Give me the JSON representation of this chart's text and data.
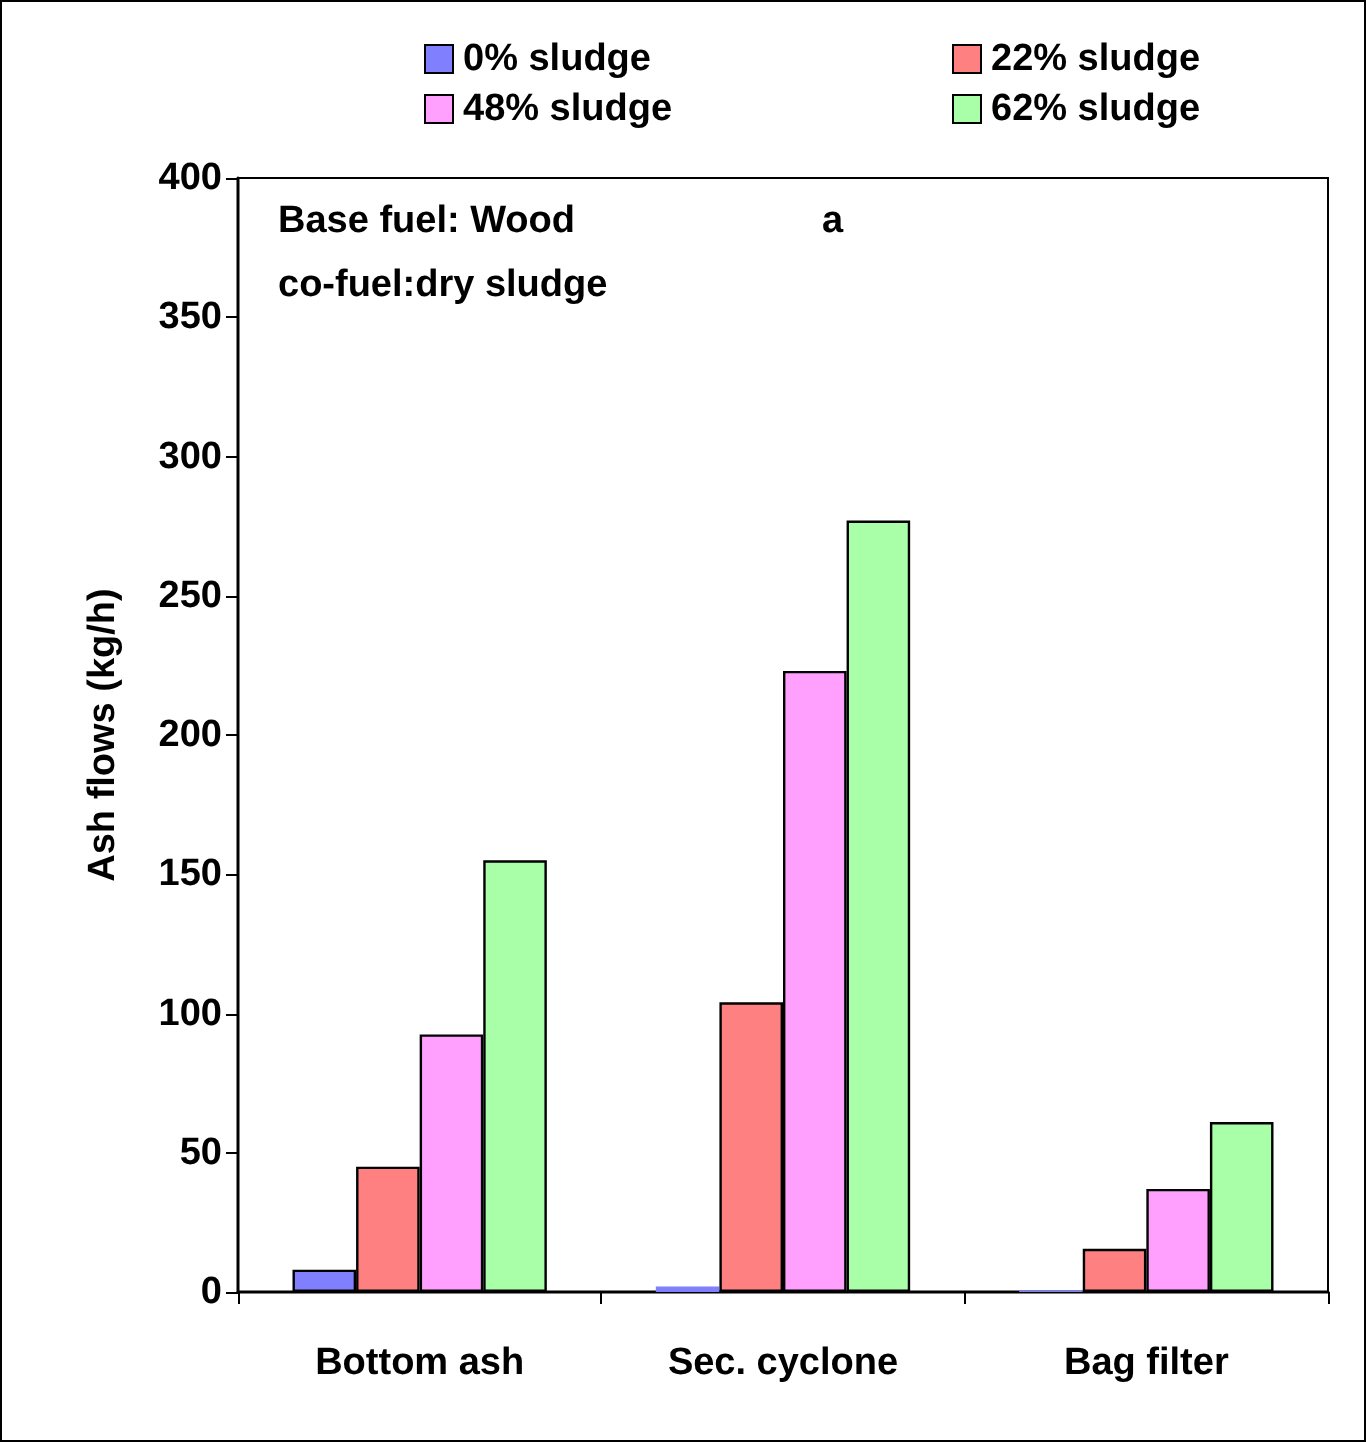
{
  "chart_data": {
    "type": "bar",
    "categories": [
      "Bottom ash",
      "Sec. cyclone",
      "Bag filter"
    ],
    "ylabel": "Ash flows (kg/h)",
    "ylim": [
      0,
      400
    ],
    "yticks": [
      0,
      50,
      100,
      150,
      200,
      250,
      300,
      350,
      400
    ],
    "grid": false,
    "legend": "top",
    "annotations": [
      "Base fuel: Wood",
      "a",
      "co-fuel:dry sludge"
    ],
    "series": [
      {
        "name": "0% sludge",
        "color": "#8080ff",
        "values": [
          8,
          2,
          0.5
        ]
      },
      {
        "name": "22% sludge",
        "color": "#ff8080",
        "values": [
          45,
          104,
          15.5
        ]
      },
      {
        "name": "48% sludge",
        "color": "#ffa0ff",
        "values": [
          92.5,
          223,
          37
        ]
      },
      {
        "name": "62% sludge",
        "color": "#a8ffa8",
        "values": [
          155,
          277,
          61
        ]
      }
    ]
  }
}
